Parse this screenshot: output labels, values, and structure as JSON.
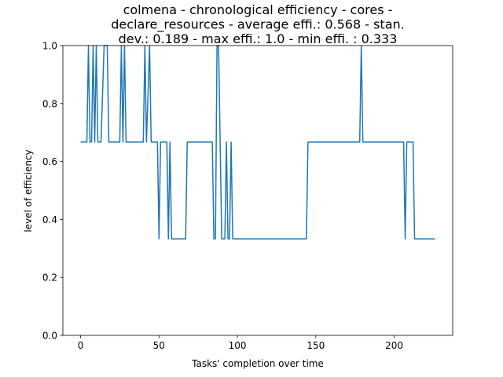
{
  "chart_data": {
    "type": "line",
    "title_lines": [
      "colmena - chronological efficiency - cores -",
      "declare_resources - average effi.: 0.568 - stan.",
      "dev.: 0.189 - max effi.: 1.0 - min effi. : 0.333"
    ],
    "xlabel": "Tasks' completion over time",
    "ylabel": "level of efficiency",
    "xlim": [
      -11.3,
      237.3
    ],
    "ylim": [
      0,
      1
    ],
    "x_ticks": [
      0,
      50,
      100,
      150,
      200
    ],
    "y_ticks": [
      0.0,
      0.2,
      0.4,
      0.6,
      0.8,
      1.0
    ],
    "x_tick_labels": [
      "0",
      "50",
      "100",
      "150",
      "200"
    ],
    "y_tick_labels": [
      "0.0",
      "0.2",
      "0.4",
      "0.6",
      "0.8",
      "1.0"
    ],
    "grid": false,
    "series": [
      {
        "color": "#1f77b4",
        "points": [
          [
            0,
            0.667
          ],
          [
            4,
            0.667
          ],
          [
            5,
            1.0
          ],
          [
            6,
            0.667
          ],
          [
            7,
            0.667
          ],
          [
            8,
            1.0
          ],
          [
            9,
            0.667
          ],
          [
            10,
            1.0
          ],
          [
            11,
            0.667
          ],
          [
            13,
            0.667
          ],
          [
            15,
            1.0
          ],
          [
            17,
            1.0
          ],
          [
            18,
            0.667
          ],
          [
            25,
            0.667
          ],
          [
            26,
            1.0
          ],
          [
            27,
            0.667
          ],
          [
            28,
            1.0
          ],
          [
            29,
            0.667
          ],
          [
            40,
            0.667
          ],
          [
            41,
            1.0
          ],
          [
            42,
            0.667
          ],
          [
            44,
            1.0
          ],
          [
            45,
            0.667
          ],
          [
            49,
            0.667
          ],
          [
            50,
            0.333
          ],
          [
            51,
            0.667
          ],
          [
            55,
            0.667
          ],
          [
            56,
            0.333
          ],
          [
            57,
            0.667
          ],
          [
            58,
            0.333
          ],
          [
            67,
            0.333
          ],
          [
            68,
            0.667
          ],
          [
            84,
            0.667
          ],
          [
            85,
            0.333
          ],
          [
            86,
            0.333
          ],
          [
            87,
            1.0
          ],
          [
            88,
            1.0
          ],
          [
            89,
            0.667
          ],
          [
            90,
            0.333
          ],
          [
            92,
            0.333
          ],
          [
            93,
            0.667
          ],
          [
            94,
            0.333
          ],
          [
            95,
            0.333
          ],
          [
            96,
            0.667
          ],
          [
            97,
            0.333
          ],
          [
            144,
            0.333
          ],
          [
            145,
            0.667
          ],
          [
            178,
            0.667
          ],
          [
            179,
            1.0
          ],
          [
            180,
            0.667
          ],
          [
            206,
            0.667
          ],
          [
            207,
            0.333
          ],
          [
            208,
            0.667
          ],
          [
            212,
            0.667
          ],
          [
            213,
            0.333
          ],
          [
            226,
            0.333
          ]
        ]
      }
    ]
  }
}
